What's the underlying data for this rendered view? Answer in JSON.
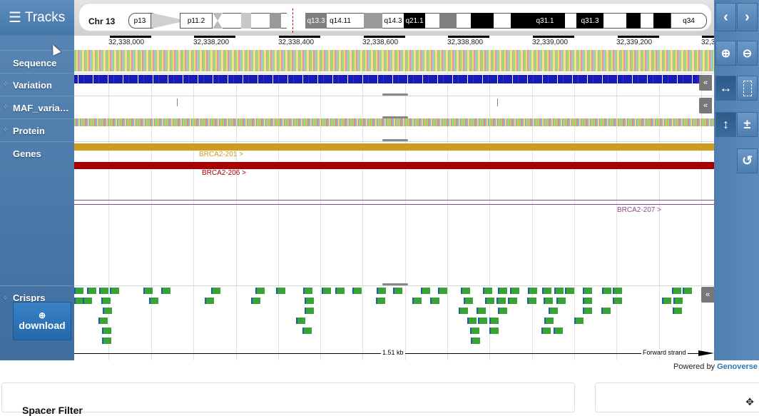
{
  "leftPanel": {
    "tracks_label": "Tracks",
    "track_labels": [
      "Sequence",
      "Variation",
      "MAF_varia…",
      "Protein",
      "Genes",
      "Crisprs"
    ],
    "download_label": "download"
  },
  "chromosome": {
    "name": "Chr 13",
    "bands": [
      "p13",
      "p11.2",
      "q13.3",
      "q14.11",
      "q14.3",
      "q21.1",
      "q31.1",
      "q31.3",
      "q34"
    ]
  },
  "ruler": {
    "labels": [
      "32,338,000",
      "32,338,200",
      "32,338,400",
      "32,338,600",
      "32,338,800",
      "32,339,000",
      "32,339,200",
      "32,3…"
    ]
  },
  "genes": [
    {
      "name": "BRCA2-201 >",
      "color": "#d09b20"
    },
    {
      "name": "BRCA2-206 >",
      "color": "#a80000"
    },
    {
      "name": "BRCA2-207 >",
      "color": "#8b4a8b"
    }
  ],
  "scale": {
    "length": "1.51 kb",
    "strand": "Forward strand"
  },
  "controls": {
    "collapse_symbol": "«",
    "plusminus": "±"
  },
  "footer": {
    "powered_prefix": "Powered by",
    "powered_brand": "Genoverse"
  },
  "panels": {
    "filter_title": "Spacer Filter"
  },
  "colors": {
    "panel_blue": "#4a7aad",
    "crispr_green": "#3aa335",
    "variation_blue": "#1a1ab8"
  }
}
